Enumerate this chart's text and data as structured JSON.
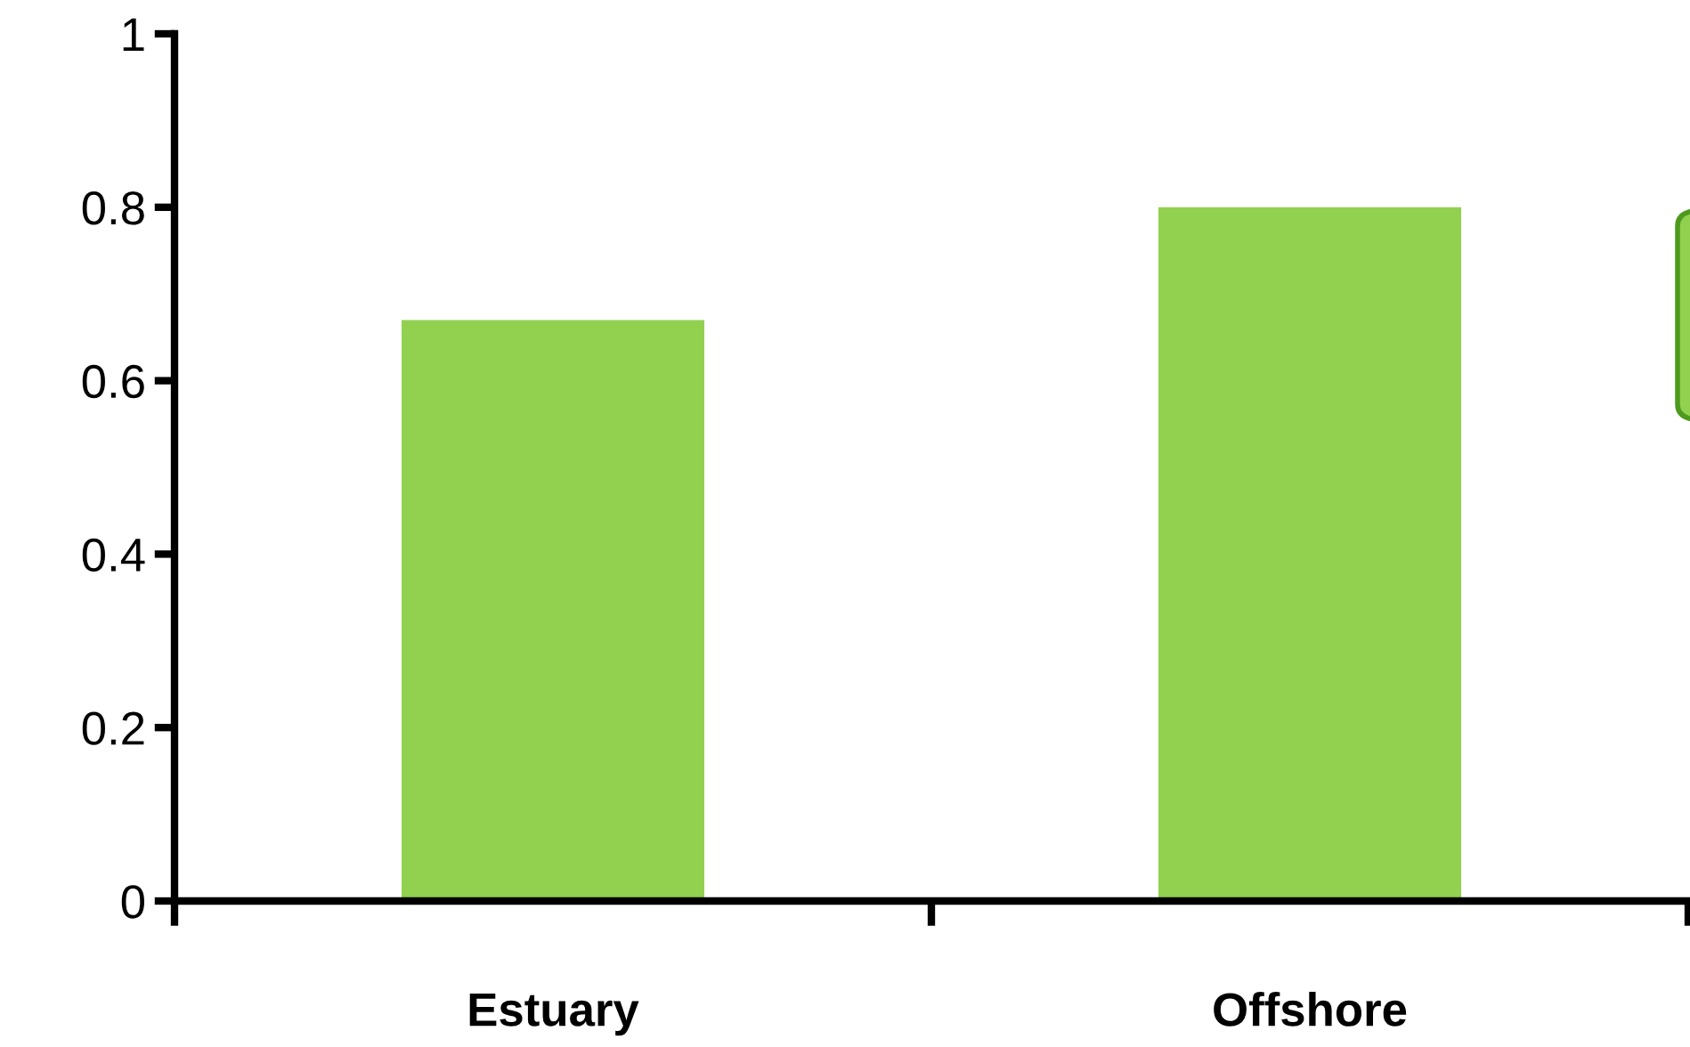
{
  "chart_data": {
    "type": "bar",
    "categories": [
      "Estuary",
      "Offshore"
    ],
    "values": [
      0.67,
      0.8
    ],
    "color": "#92d050",
    "ylim": [
      0,
      1
    ],
    "yticks": [
      0,
      0.2,
      0.4,
      0.6,
      0.8,
      1
    ],
    "grid": false
  }
}
